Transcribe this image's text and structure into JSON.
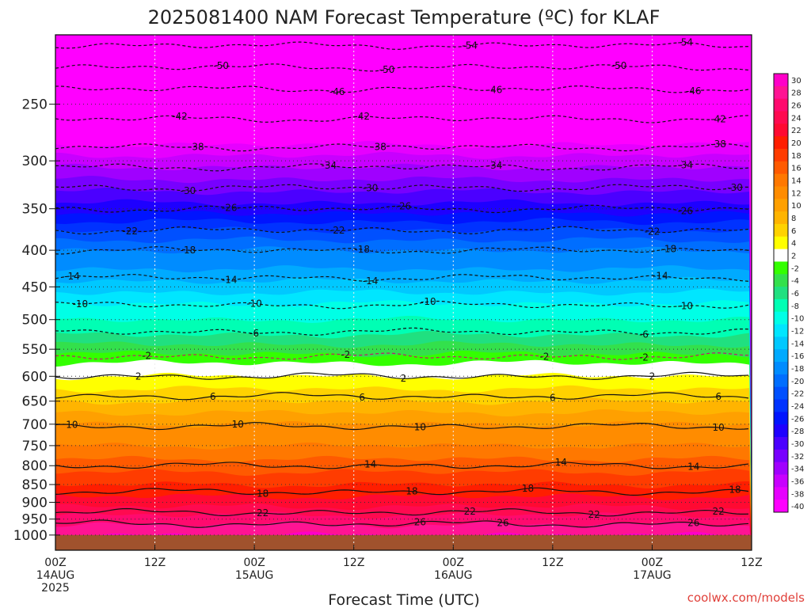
{
  "chart_data": {
    "type": "heatmap",
    "title": "2025081400 NAM Forecast Temperature (ºC) for KLAF",
    "xlabel": "Forecast Time (UTC)",
    "ylabel": "",
    "credit": "coolwx.com/models",
    "y_scale": "log-pressure",
    "ylim": [
      1050,
      200
    ],
    "y_ticks": [
      "250",
      "300",
      "350",
      "400",
      "450",
      "500",
      "550",
      "600",
      "650",
      "700",
      "750",
      "800",
      "850",
      "900",
      "950",
      "1000"
    ],
    "y_tick_values": [
      250,
      300,
      350,
      400,
      450,
      500,
      550,
      600,
      650,
      700,
      750,
      800,
      850,
      900,
      950,
      1000
    ],
    "x_ticks": [
      {
        "hour": 0,
        "label": "00Z",
        "date": "14AUG",
        "year": "2025"
      },
      {
        "hour": 12,
        "label": "12Z",
        "date": "",
        "year": ""
      },
      {
        "hour": 24,
        "label": "00Z",
        "date": "15AUG",
        "year": ""
      },
      {
        "hour": 36,
        "label": "12Z",
        "date": "",
        "year": ""
      },
      {
        "hour": 48,
        "label": "00Z",
        "date": "16AUG",
        "year": ""
      },
      {
        "hour": 60,
        "label": "12Z",
        "date": "",
        "year": ""
      },
      {
        "hour": 72,
        "label": "00Z",
        "date": "17AUG",
        "year": ""
      },
      {
        "hour": 84,
        "label": "12Z",
        "date": "",
        "year": ""
      }
    ],
    "xlim": [
      0,
      84
    ],
    "grid": true,
    "below_ground_level": 1000,
    "below_ground_color": "#a0522d",
    "colorbar_levels": [
      30,
      28,
      26,
      24,
      22,
      20,
      18,
      16,
      14,
      12,
      10,
      8,
      6,
      4,
      2,
      -2,
      -4,
      -6,
      -8,
      -10,
      -12,
      -14,
      -16,
      -18,
      -20,
      -22,
      -24,
      -26,
      -28,
      -30,
      -32,
      -34,
      -36,
      -38,
      -40
    ],
    "colorbar_colors": [
      "#ff00c8",
      "#ff1493",
      "#ff0a6e",
      "#ff0a50",
      "#ff0a32",
      "#ff1e00",
      "#ff3c00",
      "#ff5a00",
      "#ff7800",
      "#ff8c00",
      "#ffa000",
      "#ffb400",
      "#ffd200",
      "#ffff00",
      "#ffffff",
      "#33ff00",
      "#33e04c",
      "#20e080",
      "#00ffb4",
      "#00ffe6",
      "#00e6ff",
      "#00c8ff",
      "#00aaff",
      "#008cff",
      "#006eff",
      "#0050ff",
      "#0032ff",
      "#0014ff",
      "#1e00ff",
      "#4b00ff",
      "#7800ff",
      "#a000ff",
      "#c800ff",
      "#e600ff",
      "#ff00ff"
    ],
    "temperature_profile": [
      {
        "p": 200,
        "t": -56
      },
      {
        "p": 225,
        "t": -50
      },
      {
        "p": 250,
        "t": -45
      },
      {
        "p": 275,
        "t": -40
      },
      {
        "p": 300,
        "t": -35
      },
      {
        "p": 325,
        "t": -31
      },
      {
        "p": 350,
        "t": -27
      },
      {
        "p": 375,
        "t": -22
      },
      {
        "p": 400,
        "t": -18
      },
      {
        "p": 425,
        "t": -16
      },
      {
        "p": 450,
        "t": -13
      },
      {
        "p": 475,
        "t": -10
      },
      {
        "p": 500,
        "t": -8
      },
      {
        "p": 525,
        "t": -6
      },
      {
        "p": 550,
        "t": -3
      },
      {
        "p": 575,
        "t": 0
      },
      {
        "p": 600,
        "t": 2
      },
      {
        "p": 625,
        "t": 4
      },
      {
        "p": 650,
        "t": 6
      },
      {
        "p": 700,
        "t": 10
      },
      {
        "p": 750,
        "t": 12
      },
      {
        "p": 800,
        "t": 15
      },
      {
        "p": 850,
        "t": 18
      },
      {
        "p": 900,
        "t": 21
      },
      {
        "p": 950,
        "t": 25
      },
      {
        "p": 1000,
        "t": 28
      }
    ],
    "contours": [
      {
        "label": "-54",
        "p": 207,
        "dashed": true
      },
      {
        "label": "-50",
        "p": 222,
        "dashed": true
      },
      {
        "label": "-46",
        "p": 238,
        "dashed": true
      },
      {
        "label": "-42",
        "p": 262,
        "dashed": true
      },
      {
        "label": "-38",
        "p": 287,
        "dashed": true
      },
      {
        "label": "-34",
        "p": 306,
        "dashed": true
      },
      {
        "label": "-30",
        "p": 327,
        "dashed": true
      },
      {
        "label": "-26",
        "p": 350,
        "dashed": true
      },
      {
        "label": "-22",
        "p": 375,
        "dashed": true
      },
      {
        "label": "-18",
        "p": 400,
        "dashed": true
      },
      {
        "label": "-14",
        "p": 437,
        "dashed": true
      },
      {
        "label": "-10",
        "p": 477,
        "dashed": true
      },
      {
        "label": "-6",
        "p": 520,
        "dashed": true
      },
      {
        "label": "-2",
        "p": 563,
        "dashed": true
      },
      {
        "label": "2",
        "p": 600,
        "dashed": false
      },
      {
        "label": "6",
        "p": 640,
        "dashed": false
      },
      {
        "label": "10",
        "p": 705,
        "dashed": false
      },
      {
        "label": "14",
        "p": 800,
        "dashed": false
      },
      {
        "label": "18",
        "p": 870,
        "dashed": false
      },
      {
        "label": "22",
        "p": 930,
        "dashed": false
      },
      {
        "label": "26",
        "p": 965,
        "dashed": false
      }
    ],
    "contour_label_hours": [
      [
        50,
        76
      ],
      [
        20,
        40,
        68
      ],
      [
        34,
        53,
        77
      ],
      [
        15,
        37,
        80
      ],
      [
        17,
        39,
        80
      ],
      [
        33,
        53,
        76
      ],
      [
        16,
        38,
        82
      ],
      [
        21,
        42,
        76
      ],
      [
        9,
        34,
        72
      ],
      [
        16,
        37,
        74
      ],
      [
        2,
        21,
        38,
        73
      ],
      [
        3,
        24,
        45,
        76
      ],
      [
        24,
        71
      ],
      [
        11,
        35,
        59,
        71
      ],
      [
        10,
        42,
        72
      ],
      [
        19,
        37,
        60,
        80
      ],
      [
        2,
        22,
        44,
        80
      ],
      [
        38,
        61,
        77
      ],
      [
        25,
        43,
        57,
        82
      ],
      [
        25,
        50,
        65,
        80
      ],
      [
        44,
        54,
        77
      ]
    ]
  }
}
